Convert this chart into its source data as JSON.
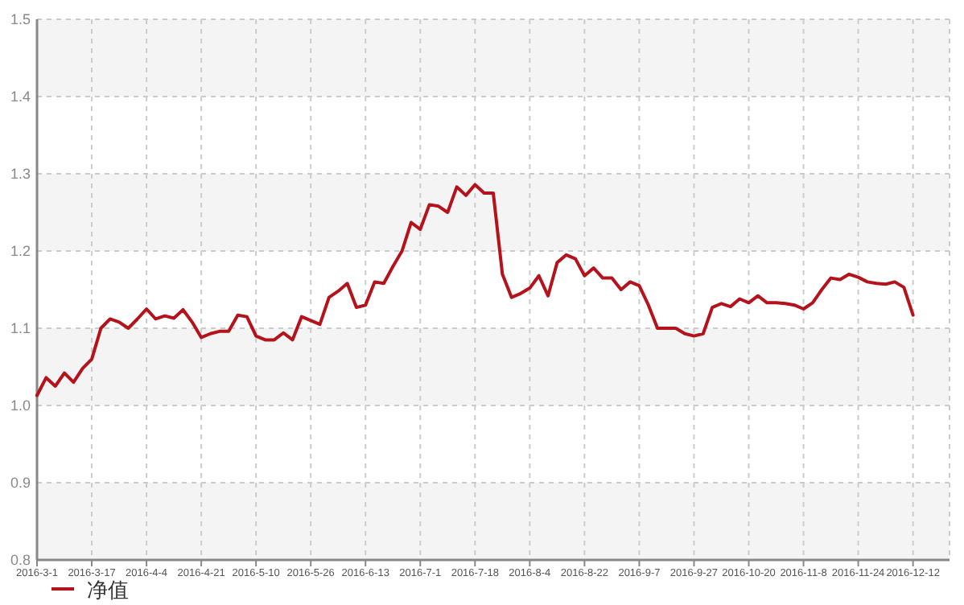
{
  "chart_data": {
    "type": "line",
    "categories": [
      "2016-3-1",
      null,
      null,
      null,
      null,
      null,
      "2016-3-17",
      null,
      null,
      null,
      null,
      null,
      "2016-4-4",
      null,
      null,
      null,
      null,
      null,
      "2016-4-21",
      null,
      null,
      null,
      null,
      null,
      "2016-5-10",
      null,
      null,
      null,
      null,
      null,
      "2016-5-26",
      null,
      null,
      null,
      null,
      null,
      "2016-6-13",
      null,
      null,
      null,
      null,
      null,
      "2016-7-1",
      null,
      null,
      null,
      null,
      null,
      "2016-7-18",
      null,
      null,
      null,
      null,
      null,
      "2016-8-4",
      null,
      null,
      null,
      null,
      null,
      "2016-8-22",
      null,
      null,
      null,
      null,
      null,
      "2016-9-7",
      null,
      null,
      null,
      null,
      null,
      "2016-9-27",
      null,
      null,
      null,
      null,
      null,
      "2016-10-20",
      null,
      null,
      null,
      null,
      null,
      "2016-11-8",
      null,
      null,
      null,
      null,
      null,
      "2016-11-24",
      null,
      null,
      null,
      null,
      null,
      "2016-12-12",
      null,
      null,
      null,
      null
    ],
    "series": [
      {
        "name": "净值",
        "color": "#b5121b",
        "values": [
          1.013,
          1.036,
          1.025,
          1.042,
          1.03,
          1.048,
          1.06,
          1.1,
          1.112,
          1.108,
          1.1,
          1.112,
          1.125,
          1.112,
          1.116,
          1.113,
          1.124,
          1.108,
          1.088,
          1.093,
          1.096,
          1.096,
          1.117,
          1.115,
          1.09,
          1.085,
          1.085,
          1.094,
          1.085,
          1.115,
          1.11,
          1.105,
          1.14,
          1.148,
          1.158,
          1.127,
          1.13,
          1.16,
          1.158,
          1.18,
          1.2,
          1.237,
          1.228,
          1.26,
          1.258,
          1.25,
          1.283,
          1.272,
          1.286,
          1.275,
          1.275,
          1.17,
          1.14,
          1.145,
          1.152,
          1.168,
          1.142,
          1.185,
          1.195,
          1.19,
          1.168,
          1.178,
          1.165,
          1.165,
          1.15,
          1.16,
          1.155,
          1.13,
          1.1,
          1.1,
          1.1,
          1.093,
          1.09,
          1.093,
          1.127,
          1.132,
          1.128,
          1.138,
          1.133,
          1.142,
          1.133,
          1.133,
          1.132,
          1.13,
          1.125,
          1.133,
          1.15,
          1.165,
          1.163,
          1.17,
          1.166,
          1.16,
          1.158,
          1.157,
          1.16,
          1.153,
          1.117,
          null,
          null,
          null,
          null
        ]
      }
    ],
    "ylim": [
      0.8,
      1.5
    ],
    "yticks": [
      0.8,
      0.9,
      {
        "value": 1,
        "label": "1.0"
      },
      1.1,
      1.2,
      1.3,
      1.4,
      1.5
    ],
    "grid": true,
    "legend": "bottom left",
    "line_style": "solid",
    "marker": "none"
  }
}
